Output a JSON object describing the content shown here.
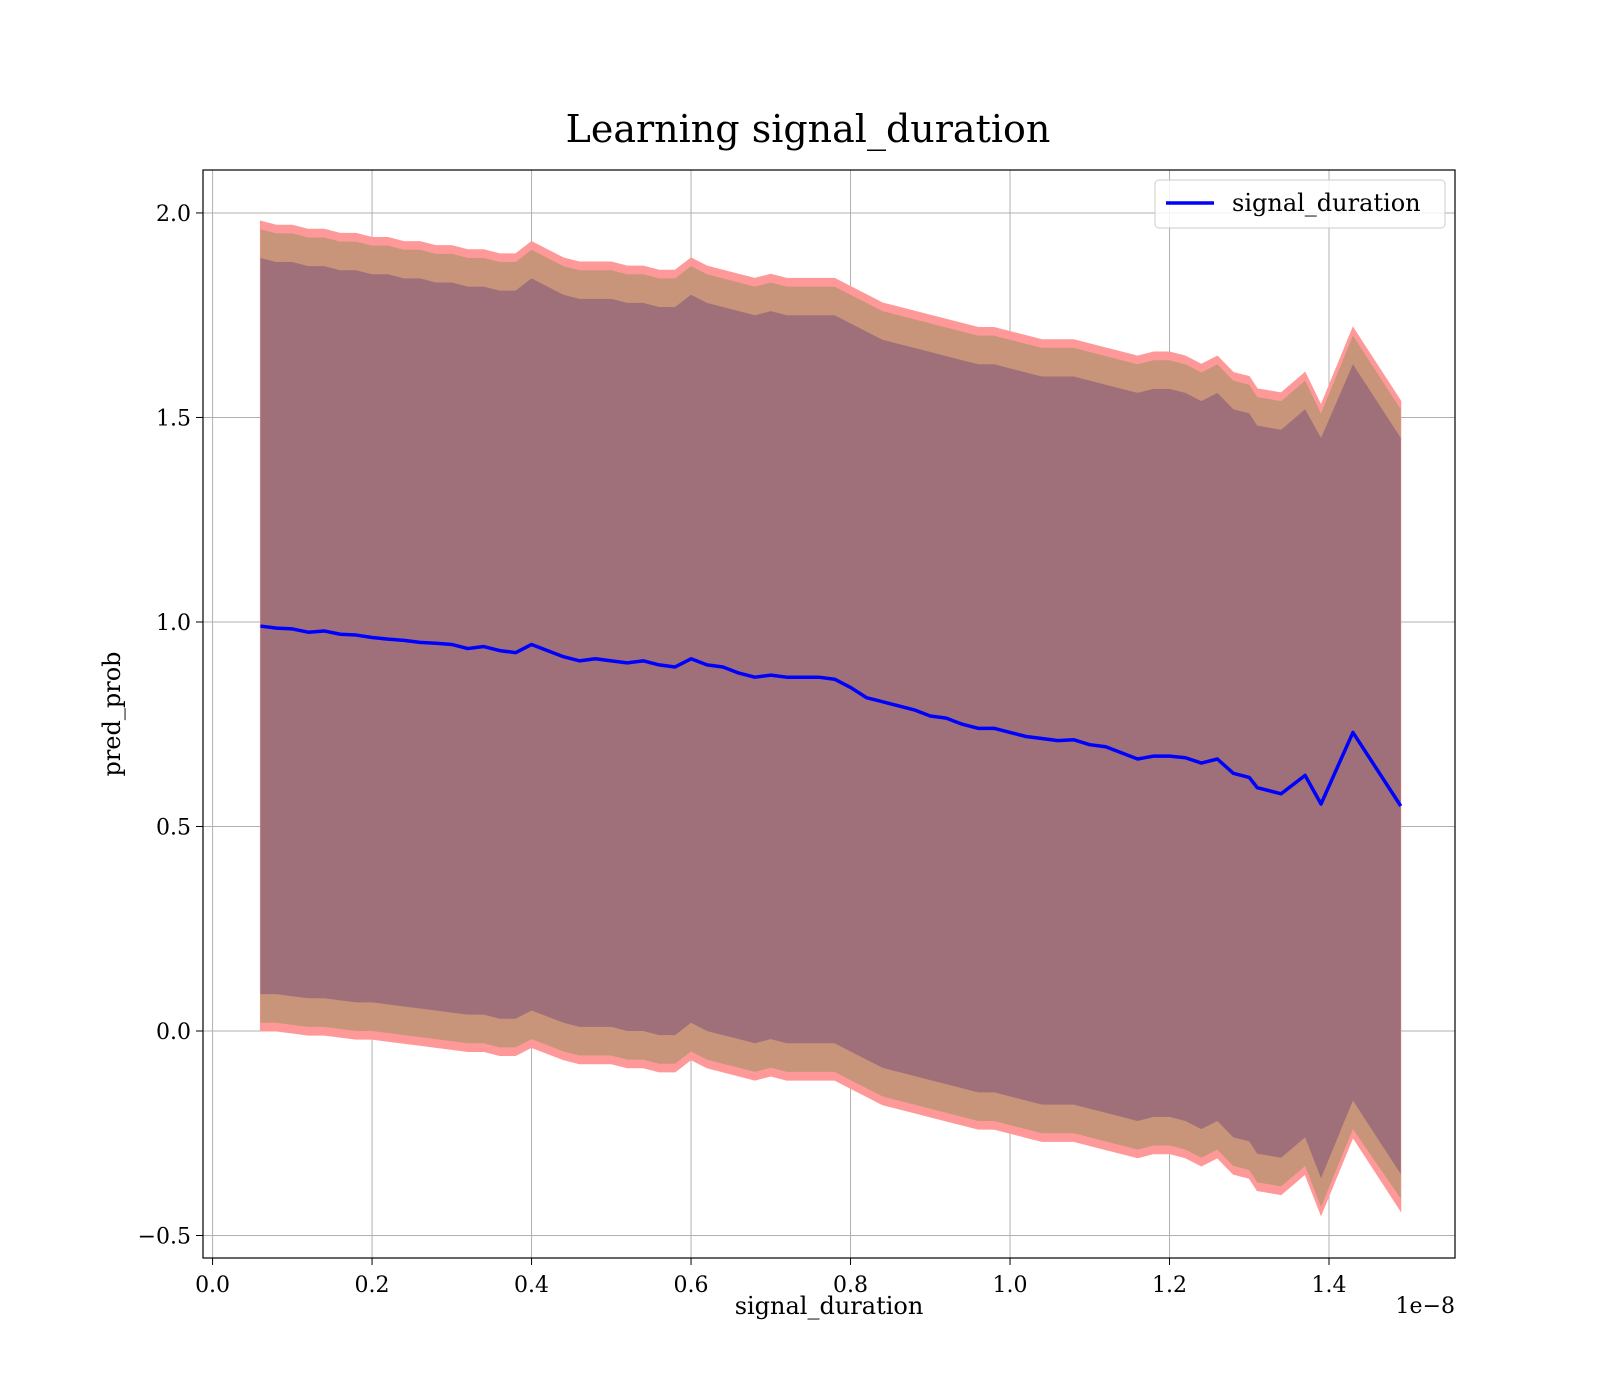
{
  "chart_data": {
    "type": "line",
    "title": "Learning signal_duration",
    "xlabel": "signal_duration",
    "ylabel": "pred_prob",
    "x_offset_label": "1e−8",
    "xlim": [
      -0.012,
      1.558
    ],
    "ylim": [
      -0.555,
      2.105
    ],
    "xticks": [
      {
        "value": 0.0,
        "label": "0.0"
      },
      {
        "value": 0.2,
        "label": "0.2"
      },
      {
        "value": 0.4,
        "label": "0.4"
      },
      {
        "value": 0.6,
        "label": "0.6"
      },
      {
        "value": 0.8,
        "label": "0.8"
      },
      {
        "value": 1.0,
        "label": "1.0"
      },
      {
        "value": 1.2,
        "label": "1.2"
      },
      {
        "value": 1.4,
        "label": "1.4"
      }
    ],
    "yticks": [
      {
        "value": -0.5,
        "label": "−0.5"
      },
      {
        "value": 0.0,
        "label": "0.0"
      },
      {
        "value": 0.5,
        "label": "0.5"
      },
      {
        "value": 1.0,
        "label": "1.0"
      },
      {
        "value": 1.5,
        "label": "1.5"
      },
      {
        "value": 2.0,
        "label": "2.0"
      }
    ],
    "grid": true,
    "legend": {
      "placement": "upper right",
      "entries": [
        "signal_duration"
      ]
    },
    "line_color": "#0000ff",
    "band_colors": {
      "outer": "#ff9999",
      "middle": "#c8957a",
      "inner": "#a0707a"
    },
    "series": [
      {
        "name": "signal_duration",
        "x": [
          0.06,
          0.08,
          0.1,
          0.12,
          0.14,
          0.16,
          0.18,
          0.2,
          0.22,
          0.24,
          0.26,
          0.28,
          0.3,
          0.32,
          0.34,
          0.36,
          0.38,
          0.4,
          0.42,
          0.44,
          0.46,
          0.48,
          0.5,
          0.52,
          0.54,
          0.56,
          0.58,
          0.6,
          0.62,
          0.64,
          0.66,
          0.68,
          0.7,
          0.72,
          0.74,
          0.76,
          0.78,
          0.8,
          0.82,
          0.84,
          0.86,
          0.88,
          0.9,
          0.92,
          0.94,
          0.96,
          0.98,
          1.0,
          1.02,
          1.04,
          1.06,
          1.08,
          1.1,
          1.12,
          1.14,
          1.16,
          1.18,
          1.2,
          1.22,
          1.24,
          1.26,
          1.28,
          1.3,
          1.31,
          1.34,
          1.37,
          1.39,
          1.43,
          1.49
        ],
        "values": [
          0.99,
          0.985,
          0.983,
          0.975,
          0.978,
          0.97,
          0.968,
          0.962,
          0.958,
          0.955,
          0.95,
          0.948,
          0.945,
          0.935,
          0.94,
          0.93,
          0.925,
          0.945,
          0.93,
          0.915,
          0.905,
          0.91,
          0.905,
          0.9,
          0.905,
          0.895,
          0.89,
          0.91,
          0.895,
          0.89,
          0.875,
          0.865,
          0.87,
          0.865,
          0.865,
          0.865,
          0.86,
          0.84,
          0.815,
          0.805,
          0.795,
          0.785,
          0.77,
          0.765,
          0.75,
          0.74,
          0.74,
          0.73,
          0.72,
          0.715,
          0.71,
          0.712,
          0.7,
          0.695,
          0.68,
          0.665,
          0.672,
          0.672,
          0.668,
          0.655,
          0.665,
          0.63,
          0.62,
          0.595,
          0.58,
          0.625,
          0.555,
          0.73,
          0.55
        ],
        "bands": {
          "outer_upper": [
            1.98,
            1.97,
            1.97,
            1.96,
            1.96,
            1.95,
            1.95,
            1.94,
            1.94,
            1.93,
            1.93,
            1.92,
            1.92,
            1.91,
            1.91,
            1.9,
            1.9,
            1.93,
            1.91,
            1.89,
            1.88,
            1.88,
            1.88,
            1.87,
            1.87,
            1.86,
            1.86,
            1.89,
            1.87,
            1.86,
            1.85,
            1.84,
            1.85,
            1.84,
            1.84,
            1.84,
            1.84,
            1.82,
            1.8,
            1.78,
            1.77,
            1.76,
            1.75,
            1.74,
            1.73,
            1.72,
            1.72,
            1.71,
            1.7,
            1.69,
            1.69,
            1.69,
            1.68,
            1.67,
            1.66,
            1.65,
            1.66,
            1.66,
            1.65,
            1.63,
            1.65,
            1.61,
            1.6,
            1.57,
            1.56,
            1.61,
            1.53,
            1.72,
            1.54
          ],
          "middle_upper": [
            1.96,
            1.95,
            1.95,
            1.94,
            1.94,
            1.93,
            1.93,
            1.92,
            1.92,
            1.91,
            1.91,
            1.9,
            1.9,
            1.89,
            1.89,
            1.88,
            1.88,
            1.91,
            1.89,
            1.87,
            1.86,
            1.86,
            1.86,
            1.85,
            1.85,
            1.84,
            1.84,
            1.87,
            1.85,
            1.84,
            1.83,
            1.82,
            1.83,
            1.82,
            1.82,
            1.82,
            1.82,
            1.8,
            1.78,
            1.76,
            1.75,
            1.74,
            1.73,
            1.72,
            1.71,
            1.7,
            1.7,
            1.69,
            1.68,
            1.67,
            1.67,
            1.67,
            1.66,
            1.65,
            1.64,
            1.63,
            1.64,
            1.64,
            1.63,
            1.61,
            1.63,
            1.59,
            1.58,
            1.55,
            1.54,
            1.59,
            1.51,
            1.7,
            1.52
          ],
          "inner_upper": [
            1.89,
            1.88,
            1.88,
            1.87,
            1.87,
            1.86,
            1.86,
            1.85,
            1.85,
            1.84,
            1.84,
            1.83,
            1.83,
            1.82,
            1.82,
            1.81,
            1.81,
            1.84,
            1.82,
            1.8,
            1.79,
            1.79,
            1.79,
            1.78,
            1.78,
            1.77,
            1.77,
            1.8,
            1.78,
            1.77,
            1.76,
            1.75,
            1.76,
            1.75,
            1.75,
            1.75,
            1.75,
            1.73,
            1.71,
            1.69,
            1.68,
            1.67,
            1.66,
            1.65,
            1.64,
            1.63,
            1.63,
            1.62,
            1.61,
            1.6,
            1.6,
            1.6,
            1.59,
            1.58,
            1.57,
            1.56,
            1.57,
            1.57,
            1.56,
            1.54,
            1.56,
            1.52,
            1.51,
            1.48,
            1.47,
            1.52,
            1.45,
            1.63,
            1.45
          ],
          "inner_lower": [
            0.09,
            0.09,
            0.085,
            0.08,
            0.08,
            0.075,
            0.07,
            0.07,
            0.065,
            0.06,
            0.055,
            0.05,
            0.045,
            0.04,
            0.04,
            0.03,
            0.03,
            0.05,
            0.035,
            0.02,
            0.01,
            0.01,
            0.01,
            0.0,
            0.0,
            -0.01,
            -0.01,
            0.02,
            0.0,
            -0.01,
            -0.02,
            -0.03,
            -0.02,
            -0.03,
            -0.03,
            -0.03,
            -0.03,
            -0.05,
            -0.07,
            -0.09,
            -0.1,
            -0.11,
            -0.12,
            -0.13,
            -0.14,
            -0.15,
            -0.15,
            -0.16,
            -0.17,
            -0.18,
            -0.18,
            -0.18,
            -0.19,
            -0.2,
            -0.21,
            -0.22,
            -0.21,
            -0.21,
            -0.22,
            -0.24,
            -0.22,
            -0.26,
            -0.27,
            -0.3,
            -0.31,
            -0.26,
            -0.36,
            -0.17,
            -0.35
          ],
          "middle_lower": [
            0.02,
            0.02,
            0.015,
            0.01,
            0.01,
            0.005,
            0.0,
            0.0,
            -0.005,
            -0.01,
            -0.015,
            -0.02,
            -0.025,
            -0.03,
            -0.03,
            -0.04,
            -0.04,
            -0.02,
            -0.035,
            -0.05,
            -0.06,
            -0.06,
            -0.06,
            -0.07,
            -0.07,
            -0.08,
            -0.08,
            -0.05,
            -0.07,
            -0.08,
            -0.09,
            -0.1,
            -0.09,
            -0.1,
            -0.1,
            -0.1,
            -0.1,
            -0.12,
            -0.14,
            -0.16,
            -0.17,
            -0.18,
            -0.19,
            -0.2,
            -0.21,
            -0.22,
            -0.22,
            -0.23,
            -0.24,
            -0.25,
            -0.25,
            -0.25,
            -0.26,
            -0.27,
            -0.28,
            -0.29,
            -0.28,
            -0.28,
            -0.29,
            -0.31,
            -0.29,
            -0.33,
            -0.34,
            -0.37,
            -0.38,
            -0.33,
            -0.43,
            -0.24,
            -0.41
          ],
          "outer_lower": [
            0.0,
            0.0,
            -0.005,
            -0.01,
            -0.01,
            -0.015,
            -0.02,
            -0.02,
            -0.025,
            -0.03,
            -0.035,
            -0.04,
            -0.045,
            -0.05,
            -0.05,
            -0.06,
            -0.06,
            -0.04,
            -0.055,
            -0.07,
            -0.08,
            -0.08,
            -0.08,
            -0.09,
            -0.09,
            -0.1,
            -0.1,
            -0.07,
            -0.09,
            -0.1,
            -0.11,
            -0.12,
            -0.11,
            -0.12,
            -0.12,
            -0.12,
            -0.12,
            -0.14,
            -0.16,
            -0.18,
            -0.19,
            -0.2,
            -0.21,
            -0.22,
            -0.23,
            -0.24,
            -0.24,
            -0.25,
            -0.26,
            -0.27,
            -0.27,
            -0.27,
            -0.28,
            -0.29,
            -0.3,
            -0.31,
            -0.3,
            -0.3,
            -0.31,
            -0.33,
            -0.31,
            -0.35,
            -0.36,
            -0.39,
            -0.4,
            -0.35,
            -0.45,
            -0.26,
            -0.44
          ]
        }
      }
    ]
  }
}
